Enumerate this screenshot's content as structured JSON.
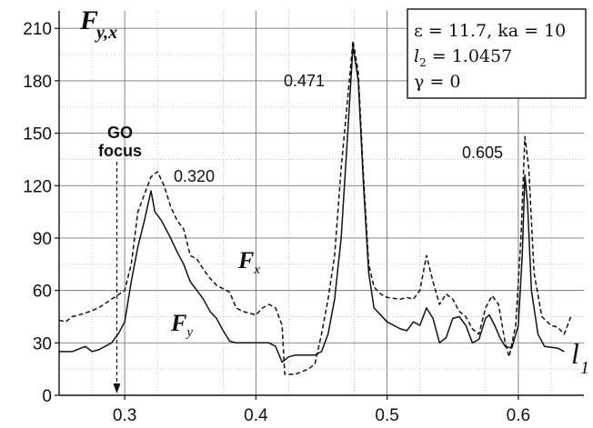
{
  "chart_data": {
    "type": "line",
    "xlim": [
      0.25,
      0.65
    ],
    "ylim": [
      0,
      220
    ],
    "x_ticks": [
      0.3,
      0.4,
      0.5,
      0.6
    ],
    "y_ticks": [
      0,
      30,
      60,
      90,
      120,
      150,
      180,
      210
    ],
    "grid": true,
    "ylabel": {
      "main": "F",
      "sub": "y,x"
    },
    "xlabel": {
      "main": "l",
      "sub": "1"
    },
    "series": [
      {
        "name": "F_y",
        "style": "solid",
        "points": [
          [
            0.25,
            25
          ],
          [
            0.26,
            25
          ],
          [
            0.27,
            28
          ],
          [
            0.275,
            25
          ],
          [
            0.28,
            26
          ],
          [
            0.29,
            30
          ],
          [
            0.295,
            35
          ],
          [
            0.3,
            42
          ],
          [
            0.305,
            65
          ],
          [
            0.31,
            85
          ],
          [
            0.315,
            100
          ],
          [
            0.32,
            117
          ],
          [
            0.323,
            105
          ],
          [
            0.328,
            100
          ],
          [
            0.335,
            90
          ],
          [
            0.34,
            82
          ],
          [
            0.345,
            75
          ],
          [
            0.35,
            65
          ],
          [
            0.355,
            60
          ],
          [
            0.36,
            55
          ],
          [
            0.365,
            48
          ],
          [
            0.37,
            44
          ],
          [
            0.375,
            37
          ],
          [
            0.38,
            31
          ],
          [
            0.385,
            30
          ],
          [
            0.39,
            30
          ],
          [
            0.4,
            30
          ],
          [
            0.41,
            30
          ],
          [
            0.415,
            28
          ],
          [
            0.42,
            19
          ],
          [
            0.425,
            22
          ],
          [
            0.43,
            23
          ],
          [
            0.44,
            23
          ],
          [
            0.445,
            23
          ],
          [
            0.45,
            25
          ],
          [
            0.455,
            35
          ],
          [
            0.46,
            55
          ],
          [
            0.465,
            90
          ],
          [
            0.47,
            150
          ],
          [
            0.474,
            200
          ],
          [
            0.478,
            180
          ],
          [
            0.482,
            120
          ],
          [
            0.486,
            70
          ],
          [
            0.49,
            50
          ],
          [
            0.5,
            42
          ],
          [
            0.51,
            38
          ],
          [
            0.515,
            37
          ],
          [
            0.52,
            42
          ],
          [
            0.525,
            40
          ],
          [
            0.53,
            50
          ],
          [
            0.535,
            44
          ],
          [
            0.54,
            30
          ],
          [
            0.545,
            33
          ],
          [
            0.55,
            44
          ],
          [
            0.555,
            45
          ],
          [
            0.56,
            40
          ],
          [
            0.565,
            30
          ],
          [
            0.57,
            32
          ],
          [
            0.575,
            44
          ],
          [
            0.578,
            46
          ],
          [
            0.582,
            40
          ],
          [
            0.586,
            33
          ],
          [
            0.59,
            28
          ],
          [
            0.595,
            27
          ],
          [
            0.6,
            40
          ],
          [
            0.603,
            80
          ],
          [
            0.605,
            126
          ],
          [
            0.607,
            110
          ],
          [
            0.61,
            60
          ],
          [
            0.615,
            35
          ],
          [
            0.62,
            28
          ],
          [
            0.63,
            27
          ],
          [
            0.635,
            25
          ]
        ]
      },
      {
        "name": "F_x",
        "style": "dashed",
        "points": [
          [
            0.25,
            43
          ],
          [
            0.255,
            42
          ],
          [
            0.26,
            45
          ],
          [
            0.27,
            47
          ],
          [
            0.28,
            50
          ],
          [
            0.29,
            55
          ],
          [
            0.3,
            60
          ],
          [
            0.305,
            75
          ],
          [
            0.31,
            105
          ],
          [
            0.315,
            115
          ],
          [
            0.32,
            125
          ],
          [
            0.325,
            128
          ],
          [
            0.33,
            120
          ],
          [
            0.335,
            108
          ],
          [
            0.34,
            100
          ],
          [
            0.345,
            95
          ],
          [
            0.35,
            80
          ],
          [
            0.355,
            78
          ],
          [
            0.36,
            72
          ],
          [
            0.365,
            67
          ],
          [
            0.37,
            63
          ],
          [
            0.375,
            61
          ],
          [
            0.38,
            59
          ],
          [
            0.385,
            50
          ],
          [
            0.39,
            48
          ],
          [
            0.395,
            47
          ],
          [
            0.4,
            46
          ],
          [
            0.405,
            50
          ],
          [
            0.41,
            52
          ],
          [
            0.415,
            50
          ],
          [
            0.42,
            40
          ],
          [
            0.422,
            12
          ],
          [
            0.43,
            12
          ],
          [
            0.44,
            15
          ],
          [
            0.445,
            18
          ],
          [
            0.45,
            35
          ],
          [
            0.455,
            55
          ],
          [
            0.46,
            80
          ],
          [
            0.465,
            130
          ],
          [
            0.47,
            170
          ],
          [
            0.474,
            203
          ],
          [
            0.478,
            185
          ],
          [
            0.482,
            125
          ],
          [
            0.486,
            75
          ],
          [
            0.49,
            62
          ],
          [
            0.495,
            58
          ],
          [
            0.5,
            56
          ],
          [
            0.51,
            55
          ],
          [
            0.515,
            56
          ],
          [
            0.52,
            55
          ],
          [
            0.525,
            60
          ],
          [
            0.53,
            80
          ],
          [
            0.535,
            65
          ],
          [
            0.54,
            52
          ],
          [
            0.545,
            58
          ],
          [
            0.55,
            55
          ],
          [
            0.555,
            48
          ],
          [
            0.56,
            45
          ],
          [
            0.565,
            38
          ],
          [
            0.57,
            35
          ],
          [
            0.575,
            50
          ],
          [
            0.58,
            57
          ],
          [
            0.585,
            52
          ],
          [
            0.59,
            30
          ],
          [
            0.593,
            22
          ],
          [
            0.598,
            40
          ],
          [
            0.602,
            90
          ],
          [
            0.605,
            148
          ],
          [
            0.608,
            130
          ],
          [
            0.612,
            70
          ],
          [
            0.618,
            45
          ],
          [
            0.625,
            40
          ],
          [
            0.63,
            39
          ],
          [
            0.635,
            35
          ],
          [
            0.64,
            45
          ]
        ]
      }
    ],
    "annotations": {
      "peak_320": "0.320",
      "peak_471": "0.471",
      "peak_605": "0.605",
      "go_line1": "GO",
      "go_line2": "focus",
      "go_x": 0.294
    },
    "legend_box": {
      "eps": "ε = 11.7, ka = 10",
      "l2_sym": "l",
      "l2_sub": "2",
      "l2_val": " = 1.0457",
      "gamma": "γ = 0"
    },
    "series_labels": {
      "fx_main": "F",
      "fx_sub": "x",
      "fy_main": "F",
      "fy_sub": "y"
    }
  }
}
